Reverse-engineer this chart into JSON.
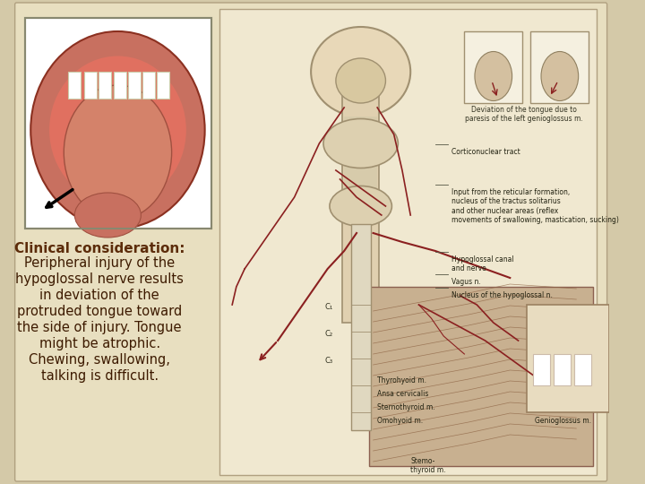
{
  "background_color": "#d4c9a8",
  "slide_bg": "#e8dfc0",
  "title": "Clinical consideration:",
  "body_text": [
    "Peripheral injury of the",
    "hypoglossal nerve results",
    "in deviation of the",
    "protruded tongue toward",
    "the side of injury. Tongue",
    "might be atrophic.",
    "Chewing, swallowing,",
    "talking is difficult."
  ],
  "title_color": "#5c2c0a",
  "body_color": "#3d1a00",
  "title_fontsize": 11,
  "body_fontsize": 10.5,
  "nerve_color": "#8b2020",
  "fig_width": 7.2,
  "fig_height": 5.4,
  "dpi": 100
}
